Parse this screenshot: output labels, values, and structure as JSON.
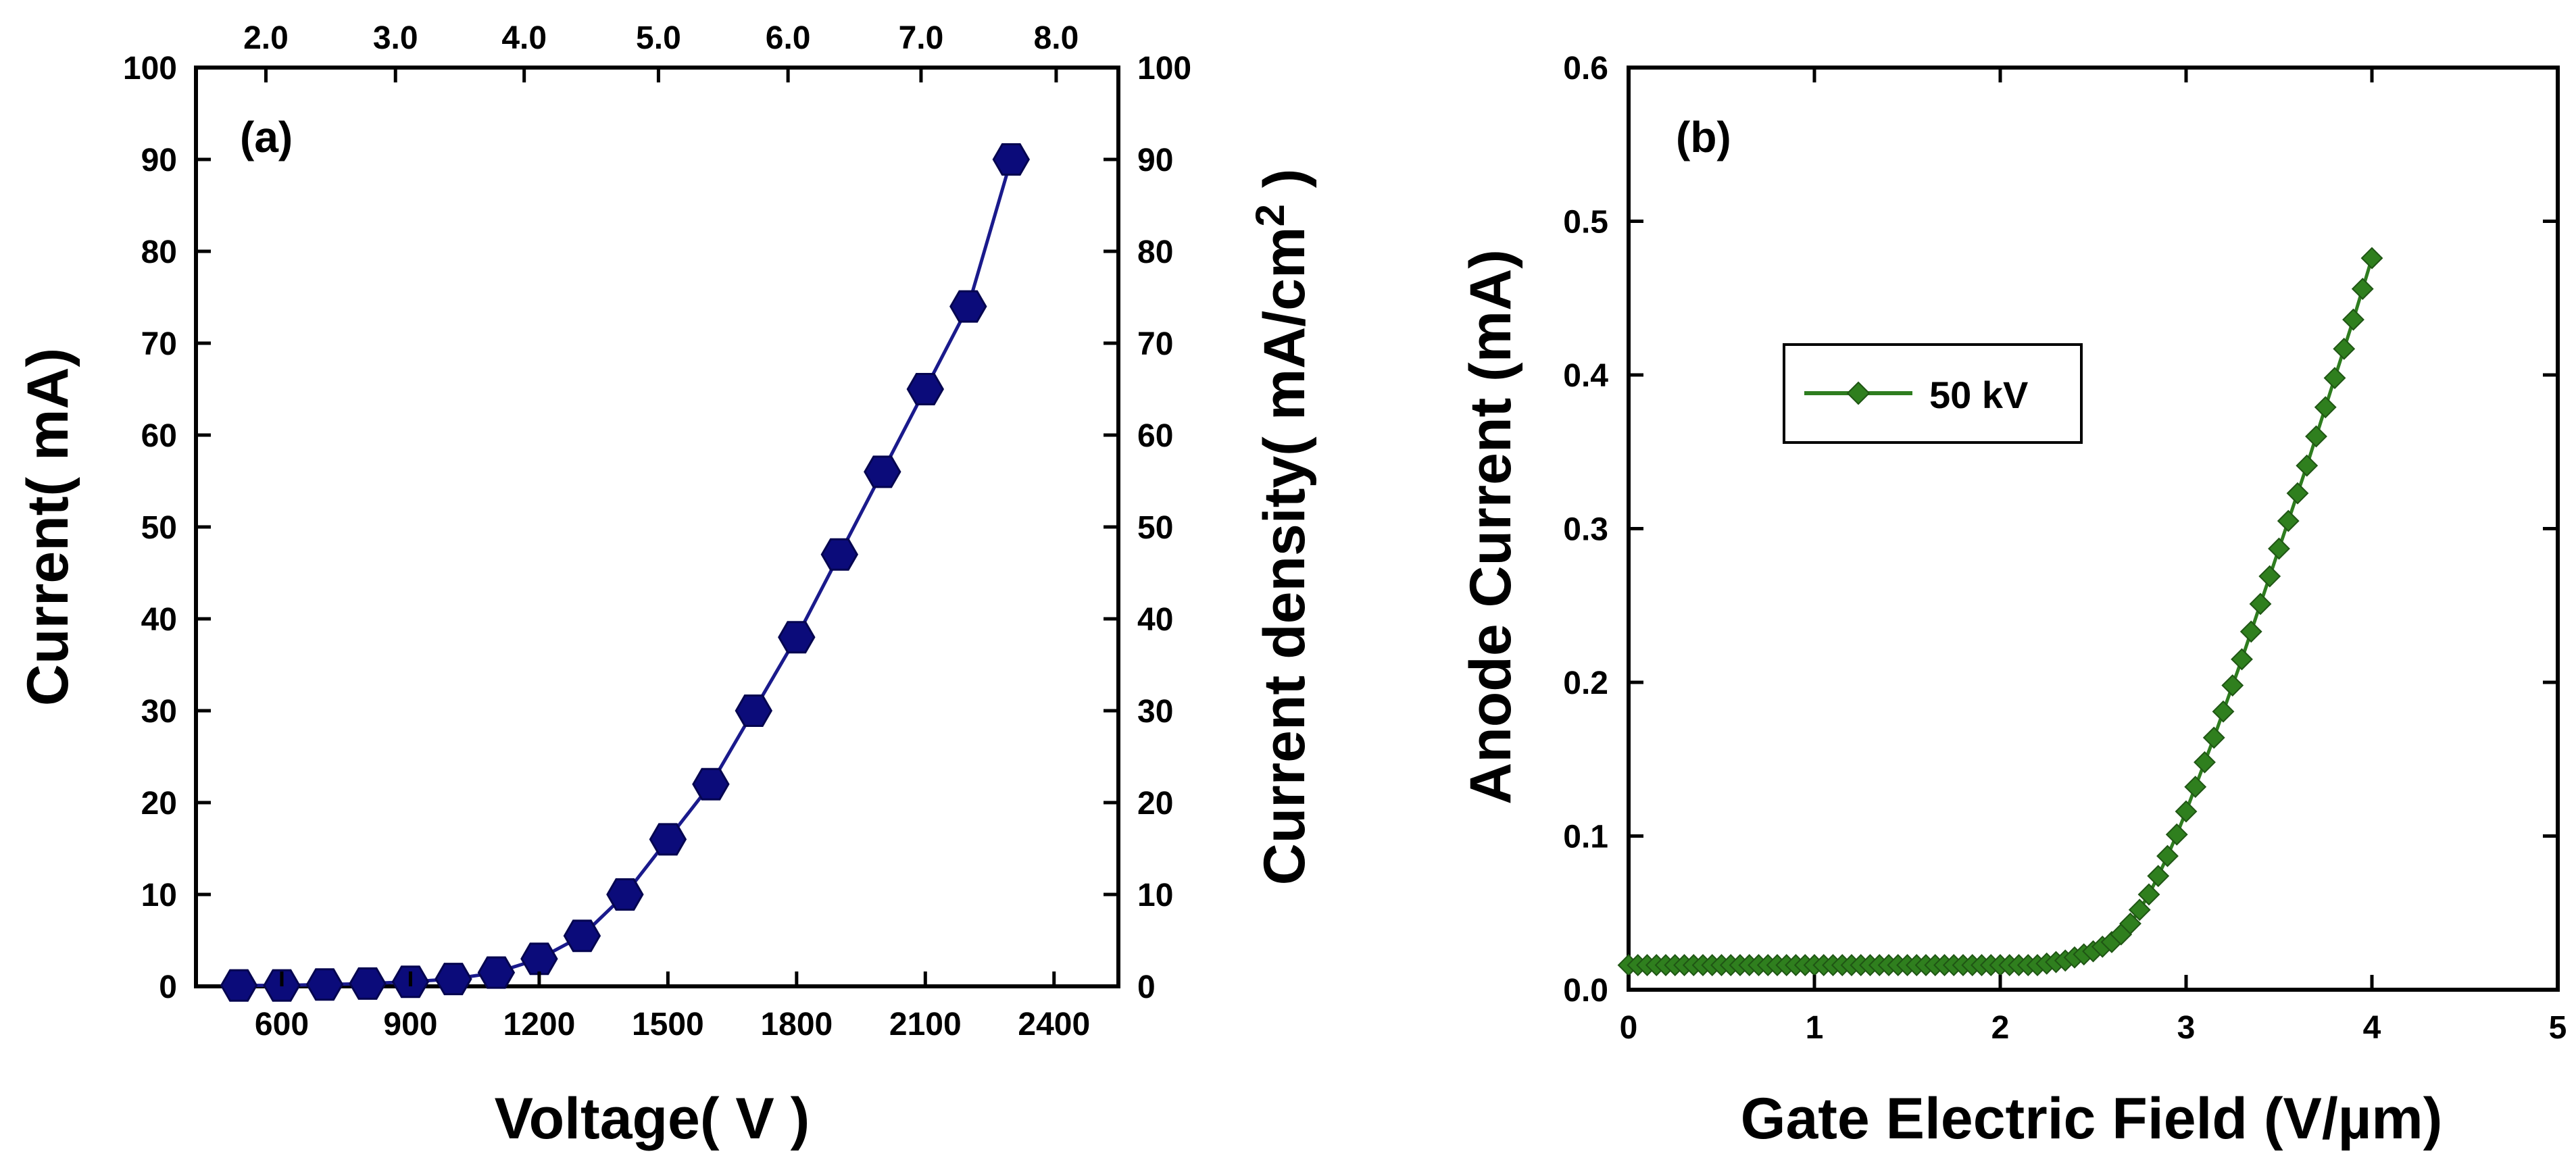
{
  "colors": {
    "series_a": "#1a1a8c",
    "series_a_marker": "#0b0b7a",
    "series_b": "#2e7d1f",
    "series_b_marker": "#2f7f1e",
    "axis": "#000000"
  },
  "chart_data": [
    {
      "type": "scatter",
      "panel_label": "(a)",
      "xlabel": "Voltage( V )",
      "ylabel": "Current( mA)",
      "y2label": "Current density( mA/cm",
      "y2label_sup": "2",
      "y2label_end": " )",
      "xlim": [
        400,
        2550
      ],
      "ylim": [
        0,
        100
      ],
      "y2lim": [
        0,
        100
      ],
      "x_ticks": [
        600,
        900,
        1200,
        1500,
        1800,
        2100,
        2400
      ],
      "x_tick_labels": [
        "600",
        "900",
        "1200",
        "1500",
        "1800",
        "2100",
        "2400"
      ],
      "y_ticks": [
        0,
        10,
        20,
        30,
        40,
        50,
        60,
        70,
        80,
        90,
        100
      ],
      "y_tick_labels": [
        "0",
        "10",
        "20",
        "30",
        "40",
        "50",
        "60",
        "70",
        "80",
        "90",
        "100"
      ],
      "top_x_ticks": [
        2.0,
        3.0,
        4.0,
        5.0,
        6.0,
        7.0,
        8.0
      ],
      "top_x_tick_labels": [
        "2.0",
        "3.0",
        "4.0",
        "5.0",
        "6.0",
        "7.0",
        "8.0"
      ],
      "top_x_positions": [
        563,
        865,
        1165,
        1478,
        1780,
        2090,
        2405
      ],
      "grid": false,
      "series": [
        {
          "x": [
            500,
            600,
            700,
            800,
            900,
            1000,
            1100,
            1200,
            1300,
            1400,
            1500,
            1600,
            1700,
            1800,
            1900,
            2000,
            2100,
            2200,
            2300
          ],
          "y": [
            0.1,
            0.1,
            0.2,
            0.3,
            0.5,
            0.8,
            1.5,
            3,
            5.5,
            10,
            16,
            22,
            30,
            38,
            47,
            56,
            65,
            74,
            90
          ]
        }
      ]
    },
    {
      "type": "line",
      "panel_label": "(b)",
      "xlabel": "Gate Electric Field (V/µm)",
      "ylabel": "Anode Current (mA)",
      "xlim": [
        0,
        5
      ],
      "ylim": [
        0,
        0.6
      ],
      "x_ticks": [
        0,
        1,
        2,
        3,
        4,
        5
      ],
      "x_tick_labels": [
        "0",
        "1",
        "2",
        "3",
        "4",
        "5"
      ],
      "y_ticks": [
        0,
        0.1,
        0.2,
        0.3,
        0.4,
        0.5,
        0.6
      ],
      "y_tick_labels": [
        "0.0",
        "0.1",
        "0.2",
        "0.3",
        "0.4",
        "0.5",
        "0.6"
      ],
      "grid": false,
      "legend_placement": "upper-left",
      "series": [
        {
          "name": "50 kV",
          "x": [
            0.0,
            0.05,
            0.1,
            0.15,
            0.2,
            0.25,
            0.3,
            0.35,
            0.4,
            0.45,
            0.5,
            0.55,
            0.6,
            0.65,
            0.7,
            0.75,
            0.8,
            0.85,
            0.9,
            0.95,
            1.0,
            1.05,
            1.1,
            1.15,
            1.2,
            1.25,
            1.3,
            1.35,
            1.4,
            1.45,
            1.5,
            1.55,
            1.6,
            1.65,
            1.7,
            1.75,
            1.8,
            1.85,
            1.9,
            1.95,
            2.0,
            2.05,
            2.1,
            2.15,
            2.2,
            2.25,
            2.3,
            2.35,
            2.4,
            2.45,
            2.5,
            2.55,
            2.6,
            2.65,
            2.7,
            2.75,
            2.8,
            2.85,
            2.9,
            2.95,
            3.0,
            3.05,
            3.1,
            3.15,
            3.2,
            3.25,
            3.3,
            3.35,
            3.4,
            3.45,
            3.5,
            3.55,
            3.6,
            3.65,
            3.7,
            3.75,
            3.8,
            3.85,
            3.9,
            3.95,
            4.0
          ],
          "y": [
            0.016,
            0.016,
            0.016,
            0.016,
            0.016,
            0.016,
            0.016,
            0.016,
            0.016,
            0.016,
            0.016,
            0.016,
            0.016,
            0.016,
            0.016,
            0.016,
            0.016,
            0.016,
            0.016,
            0.016,
            0.016,
            0.016,
            0.016,
            0.016,
            0.016,
            0.016,
            0.016,
            0.016,
            0.016,
            0.016,
            0.016,
            0.016,
            0.016,
            0.016,
            0.016,
            0.016,
            0.016,
            0.016,
            0.016,
            0.016,
            0.016,
            0.016,
            0.016,
            0.016,
            0.016,
            0.017,
            0.018,
            0.019,
            0.021,
            0.023,
            0.025,
            0.028,
            0.031,
            0.036,
            0.043,
            0.052,
            0.062,
            0.074,
            0.087,
            0.101,
            0.116,
            0.132,
            0.148,
            0.164,
            0.181,
            0.198,
            0.215,
            0.233,
            0.251,
            0.269,
            0.287,
            0.305,
            0.323,
            0.341,
            0.36,
            0.379,
            0.398,
            0.417,
            0.436,
            0.456,
            0.476
          ]
        }
      ]
    }
  ]
}
